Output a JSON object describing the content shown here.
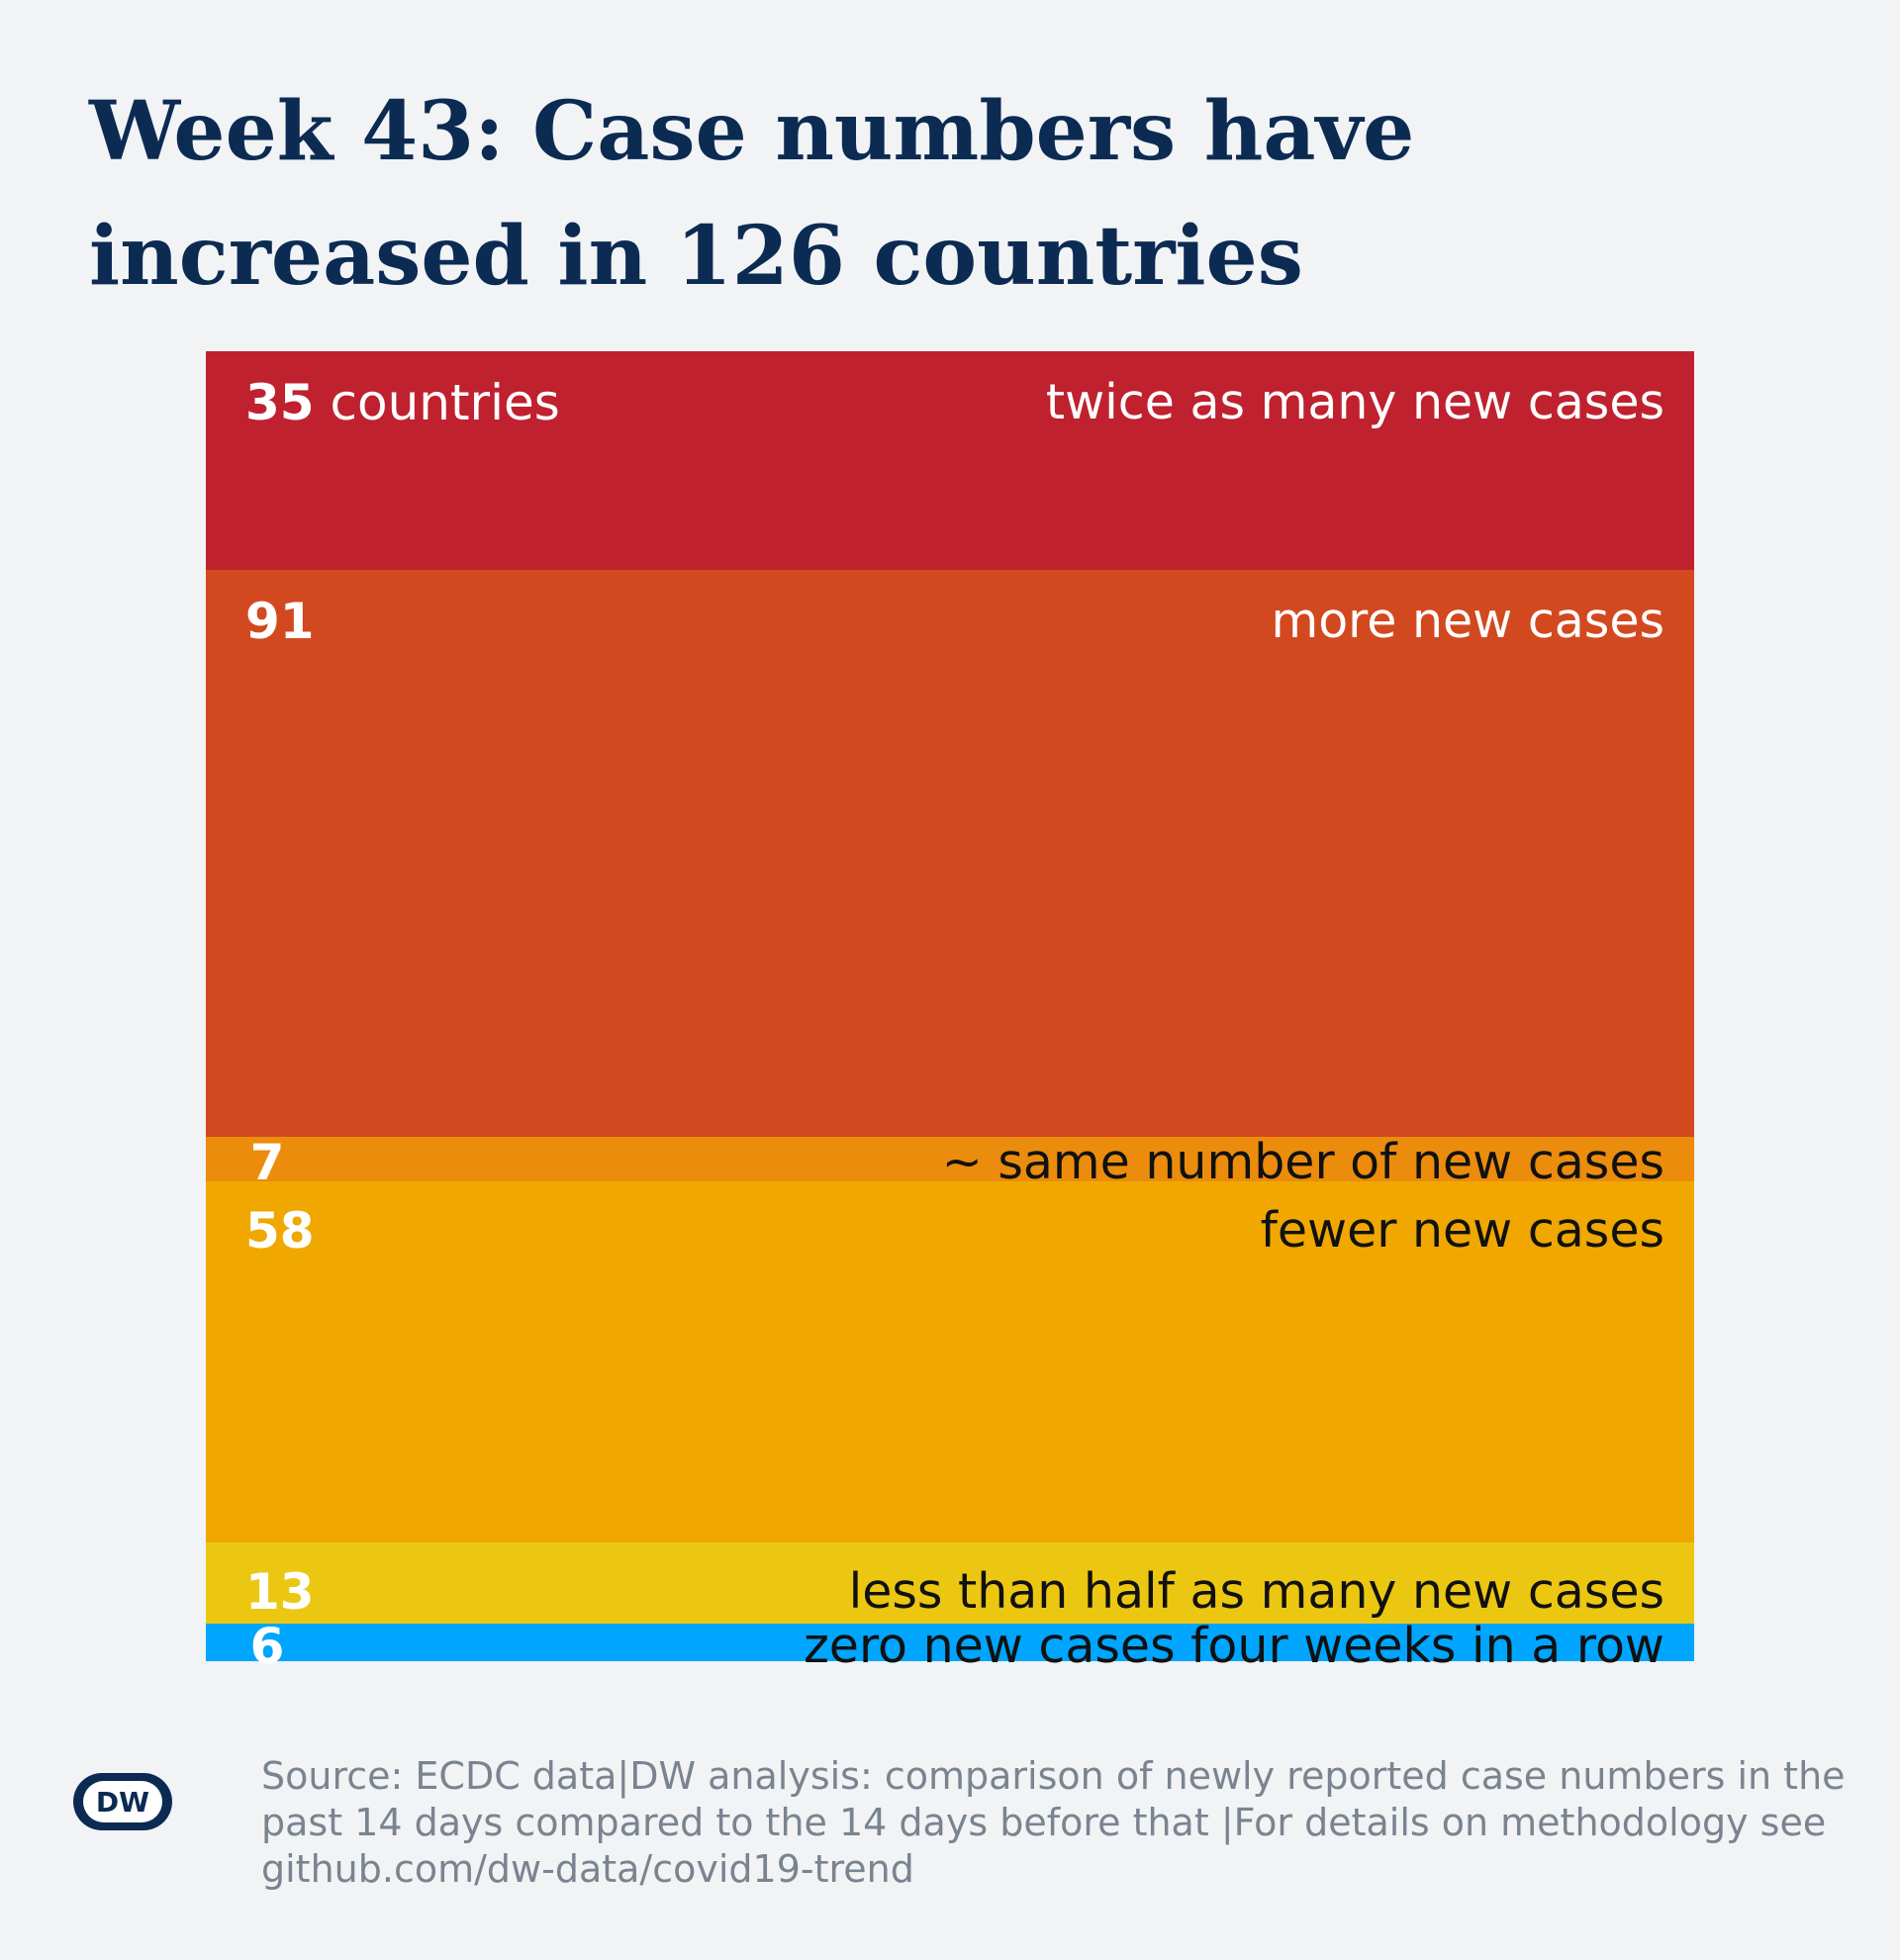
{
  "title": "Week 43: Case numbers have increased in 126 countries",
  "chart_data": {
    "type": "bar",
    "orientation": "stacked-vertical",
    "total": 210,
    "categories": [
      "twice as many new cases",
      "more new cases",
      "~ same number of new cases",
      "fewer new cases",
      "less than half as many new cases",
      "zero new cases four weeks in a row"
    ],
    "values": [
      35,
      91,
      7,
      58,
      13,
      6
    ],
    "count_unit": "countries",
    "colors": [
      "#bf212f",
      "#d2491f",
      "#ec8c0c",
      "#f0a800",
      "#ecc712",
      "#00a5ff"
    ],
    "label_colors": [
      "#ffffff",
      "#ffffff",
      "#111111",
      "#111111",
      "#111111",
      "#111111"
    ]
  },
  "footer": {
    "logo": "DW",
    "source": "Source: ECDC data|DW analysis: comparison of newly reported case numbers in the past 14 days compared to the 14 days before that |For details on methodology see github.com/dw-data/covid19-trend"
  }
}
